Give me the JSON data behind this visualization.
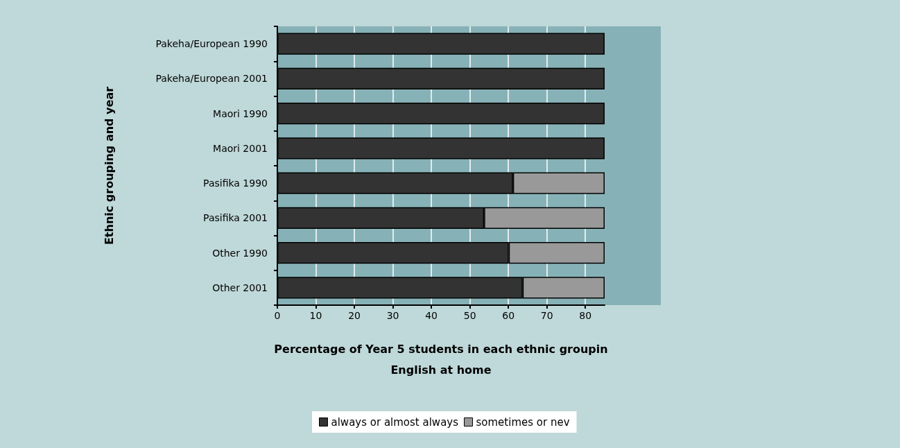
{
  "chart_data": {
    "type": "bar",
    "orientation": "horizontal",
    "stacked": true,
    "categories": [
      "Pakeha/European 1990",
      "Pakeha/European 2001",
      "Maori 1990",
      "Maori 2001",
      "Pasifika 1990",
      "Pasifika 2001",
      "Other 1990",
      "Other 2001"
    ],
    "series": [
      {
        "name": "always or almost always",
        "color": "#333333",
        "values": [
          85,
          85,
          85,
          85,
          61.2,
          53.7,
          60.1,
          63.7
        ]
      },
      {
        "name": "sometimes or nev",
        "color": "#999999",
        "values": [
          null,
          null,
          null,
          null,
          23.8,
          31.3,
          24.9,
          21.3
        ]
      }
    ],
    "xlim": [
      0,
      85
    ],
    "xticks": [
      0,
      10,
      20,
      30,
      40,
      50,
      60,
      70,
      80
    ],
    "xlabel": "Percentage of Year 5 students in each ethnic groupin\nEnglish at home",
    "ylabel": "Ethnic grouping and year",
    "grid": "x",
    "legend": "bottom"
  }
}
